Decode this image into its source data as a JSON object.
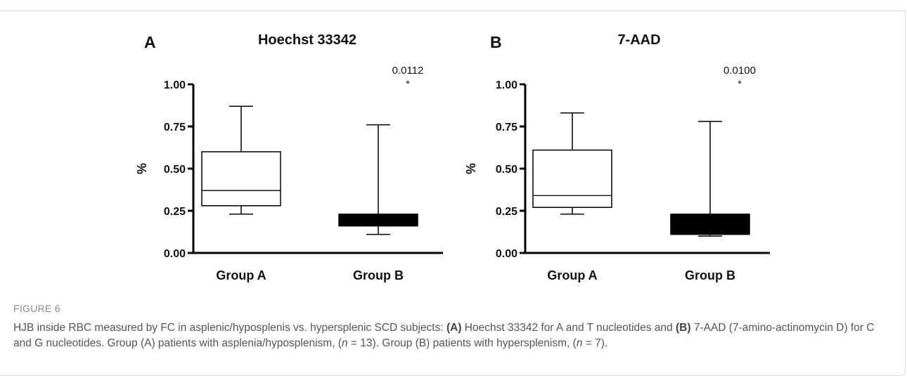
{
  "chart_data": [
    {
      "type": "box",
      "panel": "A",
      "title": "Hoechst 33342",
      "ylabel": "%",
      "ylim": [
        0,
        1.0
      ],
      "yticks": [
        "0.00",
        "0.25",
        "0.50",
        "0.75",
        "1.00"
      ],
      "categories": [
        "Group A",
        "Group B"
      ],
      "boxes": [
        {
          "category": "Group A",
          "min": 0.23,
          "q1": 0.28,
          "median": 0.37,
          "q3": 0.6,
          "max": 0.87,
          "filled": false
        },
        {
          "category": "Group B",
          "min": 0.11,
          "q1": 0.16,
          "median": 0.21,
          "q3": 0.23,
          "max": 0.76,
          "filled": true
        }
      ],
      "annotation": {
        "p_value": "0.0112",
        "marker": "*",
        "category": "Group B"
      }
    },
    {
      "type": "box",
      "panel": "B",
      "title": "7-AAD",
      "ylabel": "%",
      "ylim": [
        0,
        1.0
      ],
      "yticks": [
        "0.00",
        "0.25",
        "0.50",
        "0.75",
        "1.00"
      ],
      "categories": [
        "Group A",
        "Group B"
      ],
      "boxes": [
        {
          "category": "Group A",
          "min": 0.23,
          "q1": 0.27,
          "median": 0.34,
          "q3": 0.61,
          "max": 0.83,
          "filled": false
        },
        {
          "category": "Group B",
          "min": 0.1,
          "q1": 0.11,
          "median": 0.2,
          "q3": 0.23,
          "max": 0.78,
          "filled": true
        }
      ],
      "annotation": {
        "p_value": "0.0100",
        "marker": "*",
        "category": "Group B"
      }
    }
  ],
  "caption": {
    "label": "FIGURE 6",
    "t1": "HJB inside RBC measured by FC in asplenic/hyposplenis vs. hypersplenic SCD subjects: ",
    "b1": "(A)",
    "t2": " Hoechst 33342 for A and T nucleotides and ",
    "b2": "(B)",
    "t3": " 7-AAD (7-amino-actinomycin D) for C and G nucleotides. Group (A) patients with asplenia/hyposplenism, (",
    "n": "n",
    "t4": " = 13). Group (B) patients with hypersplenism, (",
    "t5": " = 7)."
  }
}
